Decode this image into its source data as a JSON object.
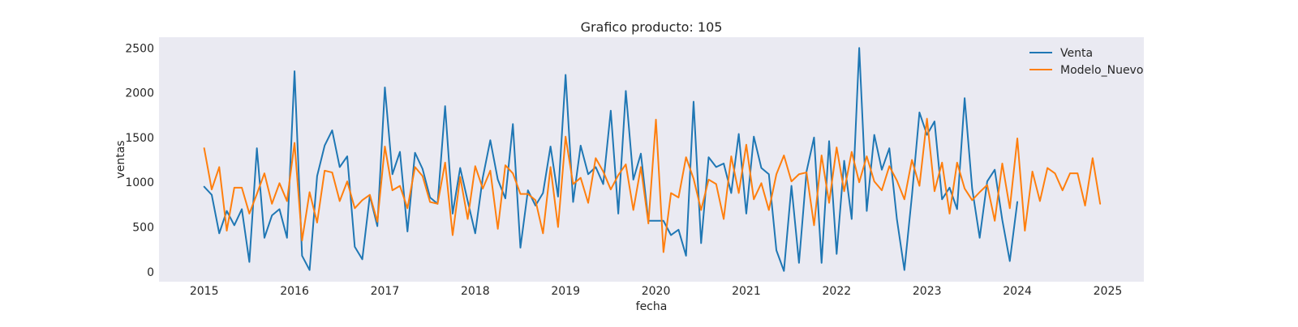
{
  "chart_data": {
    "type": "line",
    "title": "Grafico producto: 105",
    "xlabel": "fecha",
    "ylabel": "ventas",
    "xlim": [
      2014.5,
      2025.4
    ],
    "ylim": [
      -110,
      2620
    ],
    "x_ticks": [
      "2015",
      "2016",
      "2017",
      "2018",
      "2019",
      "2020",
      "2021",
      "2022",
      "2023",
      "2024",
      "2025"
    ],
    "x_tick_values": [
      2015,
      2016,
      2017,
      2018,
      2019,
      2020,
      2021,
      2022,
      2023,
      2024,
      2025
    ],
    "y_ticks": [
      "0",
      "500",
      "1000",
      "1500",
      "2000",
      "2500"
    ],
    "y_tick_values": [
      0,
      500,
      1000,
      1500,
      2000,
      2500
    ],
    "grid": false,
    "background": "#eaeaf2",
    "legend_position": "top-right",
    "series": [
      {
        "name": "Venta",
        "color": "#1f77b4",
        "x_start": 2015.0,
        "x_step": 0.08333,
        "values": [
          950,
          860,
          430,
          680,
          520,
          700,
          110,
          1380,
          380,
          630,
          700,
          380,
          2240,
          180,
          20,
          1070,
          1410,
          1580,
          1170,
          1290,
          280,
          140,
          850,
          510,
          2060,
          1090,
          1340,
          450,
          1330,
          1150,
          830,
          760,
          1850,
          650,
          1160,
          790,
          430,
          1050,
          1470,
          1030,
          820,
          1650,
          270,
          910,
          740,
          880,
          1400,
          840,
          2200,
          780,
          1410,
          1090,
          1170,
          980,
          1800,
          650,
          2020,
          1030,
          1320,
          570,
          570,
          570,
          410,
          470,
          180,
          1900,
          320,
          1280,
          1170,
          1210,
          880,
          1540,
          650,
          1510,
          1160,
          1090,
          240,
          10,
          960,
          100,
          1120,
          1500,
          100,
          1460,
          200,
          1240,
          590,
          2500,
          680,
          1530,
          1140,
          1380,
          590,
          20,
          850,
          1780,
          1530,
          1680,
          810,
          940,
          700,
          1940,
          930,
          380,
          1010,
          1140,
          580,
          120,
          780
        ]
      },
      {
        "name": "Modelo_Nuevo",
        "color": "#ff7f0e",
        "x_start": 2015.0,
        "x_step": 0.08333,
        "values": [
          1380,
          920,
          1170,
          460,
          940,
          940,
          650,
          870,
          1100,
          760,
          990,
          790,
          1440,
          350,
          890,
          550,
          1130,
          1110,
          790,
          1010,
          710,
          800,
          860,
          560,
          1400,
          910,
          960,
          710,
          1170,
          1070,
          780,
          760,
          1220,
          410,
          1060,
          590,
          1180,
          930,
          1130,
          480,
          1190,
          1100,
          870,
          870,
          800,
          430,
          1170,
          500,
          1510,
          980,
          1050,
          770,
          1270,
          1120,
          920,
          1080,
          1200,
          690,
          1170,
          540,
          1700,
          220,
          880,
          830,
          1280,
          1040,
          690,
          1030,
          980,
          590,
          1290,
          880,
          1420,
          810,
          990,
          690,
          1090,
          1300,
          1010,
          1090,
          1110,
          520,
          1300,
          770,
          1390,
          900,
          1340,
          1000,
          1290,
          1010,
          910,
          1180,
          1020,
          810,
          1250,
          960,
          1710,
          900,
          1220,
          650,
          1220,
          930,
          800,
          890,
          970,
          570,
          1210,
          710,
          1490,
          460,
          1120,
          790,
          1160,
          1100,
          910,
          1100,
          1100,
          740,
          1270,
          760
        ]
      }
    ]
  }
}
